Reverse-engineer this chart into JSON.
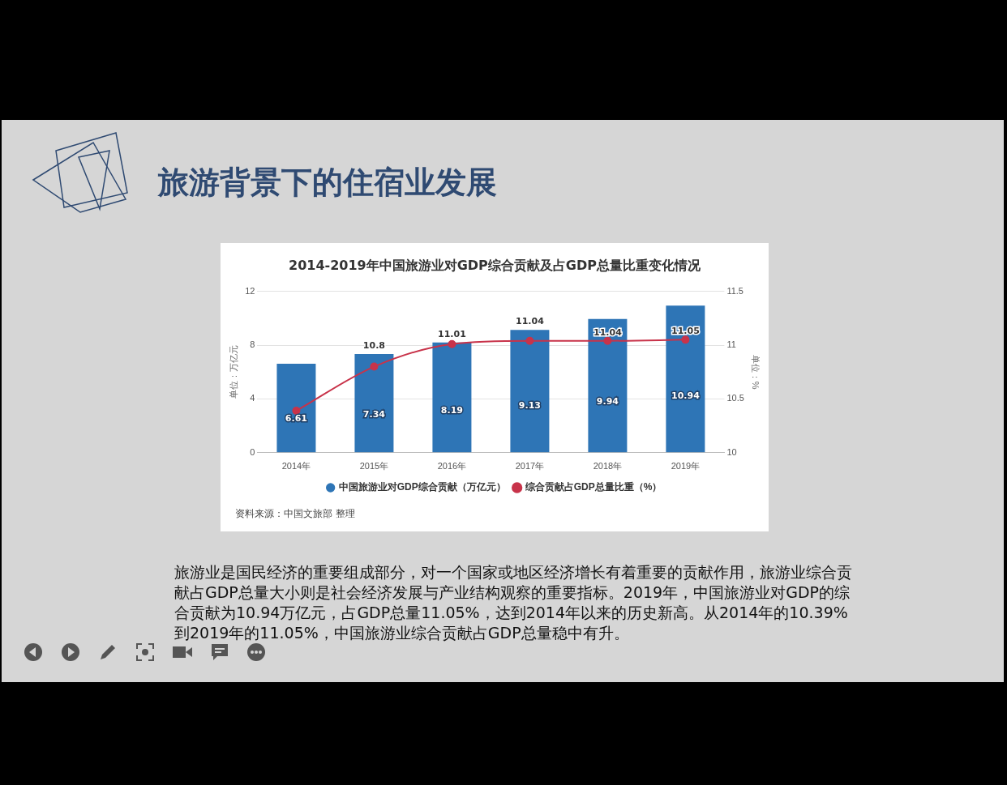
{
  "chart_data": {
    "type": "bar",
    "title": "旅游背景下的住宿业发展",
    "subtitle": "2014-2019年中国旅游业对GDP综合贡献及占GDP总量比重变化情况",
    "categories": [
      "2014年",
      "2015年",
      "2016年",
      "2017年",
      "2018年",
      "2019年"
    ],
    "series": [
      {
        "name": "中国旅游业对GDP综合贡献（万亿元）",
        "color": "#2e75b6",
        "values": [
          6.61,
          7.34,
          8.19,
          9.13,
          9.94,
          10.94
        ],
        "value_labels": [
          "6.61",
          "7.34",
          "8.19",
          "9.13",
          "9.94",
          "10.94"
        ]
      },
      {
        "name": "综合贡献占GDP总量比重（%）",
        "type": "line",
        "axis": "y2",
        "marker": "circle",
        "color": "#c8334a",
        "values": [
          10.39,
          10.8,
          11.01,
          11.04,
          11.04,
          11.05
        ],
        "value_labels": [
          null,
          "10.8",
          "11.01",
          "11.04",
          "11.04",
          "11.05"
        ]
      }
    ],
    "ylabel": "单位：万亿元",
    "y2label": "单位：%",
    "ylim": [
      0,
      12
    ],
    "yticks": [
      0,
      4,
      8,
      12
    ],
    "y2lim": [
      10,
      11.5
    ],
    "y2ticks": [
      10,
      10.5,
      11,
      11.5
    ],
    "grid": "y",
    "legend": "bottom",
    "annotations": [
      "资料来源：中国文旅部 整理",
      "旅游业是国民经济的重要组成部分，对一个国家或地区经济增长有着重要的贡献作用，旅游业综合贡献占GDP总量大小则是社会经济发展与产业结构观察的重要指标。2019年，中国旅游业对GDP的综合贡献为10.94万亿元，占GDP总量11.05%，达到2014年以来的历史新高。从2014年的10.39%到2019年的11.05%，中国旅游业综合贡献占GDP总量稳中有升。"
    ]
  }
}
